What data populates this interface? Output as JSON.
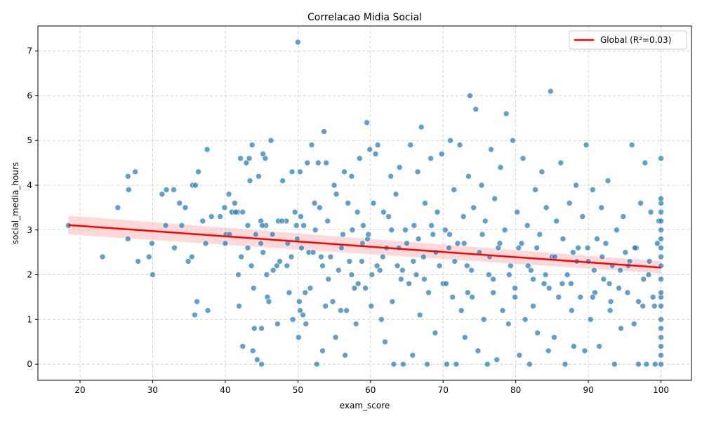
{
  "chart_data": {
    "type": "scatter",
    "title": "Correlacao Midia Social",
    "xlabel": "exam_score",
    "ylabel": "social_media_hours",
    "xlim": [
      14.2,
      104.2
    ],
    "ylim": [
      -0.36,
      7.56
    ],
    "xticks": [
      20,
      30,
      40,
      50,
      60,
      70,
      80,
      90,
      100
    ],
    "yticks": [
      0,
      1,
      2,
      3,
      4,
      5,
      6,
      7
    ],
    "grid": true,
    "legend_position": "top-right",
    "point_color": "#1f77b4",
    "regression": {
      "name": "Global (R²=0.03)",
      "color": "#ff0000",
      "band_color": "#ffb3b3",
      "x": [
        18.4,
        100
      ],
      "y": [
        3.11,
        2.16
      ],
      "ci_lower": [
        2.9,
        2.03
      ],
      "ci_upper": [
        3.32,
        2.3
      ]
    },
    "points": [
      [
        18.4,
        3.1
      ],
      [
        23.1,
        2.4
      ],
      [
        25.2,
        3.5
      ],
      [
        26.6,
        2.8
      ],
      [
        26.6,
        4.2
      ],
      [
        26.7,
        3.9
      ],
      [
        27.6,
        4.3
      ],
      [
        28.0,
        2.3
      ],
      [
        29.5,
        2.4
      ],
      [
        29.9,
        2.7
      ],
      [
        30.0,
        2.0
      ],
      [
        31.3,
        3.8
      ],
      [
        31.8,
        3.1
      ],
      [
        31.9,
        3.9
      ],
      [
        32.9,
        3.9
      ],
      [
        33.0,
        2.6
      ],
      [
        33.7,
        3.6
      ],
      [
        34.0,
        3.1
      ],
      [
        34.5,
        3.5
      ],
      [
        34.9,
        2.3
      ],
      [
        35.4,
        2.4
      ],
      [
        35.5,
        4.0
      ],
      [
        35.8,
        1.1
      ],
      [
        35.9,
        4.0
      ],
      [
        36.1,
        1.4
      ],
      [
        36.3,
        4.3
      ],
      [
        36.9,
        3.2
      ],
      [
        37.3,
        2.7
      ],
      [
        37.5,
        4.8
      ],
      [
        37.6,
        1.2
      ],
      [
        38.1,
        3.3
      ],
      [
        39.3,
        3.3
      ],
      [
        39.9,
        3.5
      ],
      [
        40.0,
        2.7
      ],
      [
        40.1,
        2.9
      ],
      [
        40.5,
        3.8
      ],
      [
        40.6,
        2.9
      ],
      [
        40.9,
        3.4
      ],
      [
        41.3,
        3.6
      ],
      [
        41.7,
        3.4
      ],
      [
        41.8,
        2.0
      ],
      [
        41.9,
        1.3
      ],
      [
        42.1,
        4.6
      ],
      [
        42.2,
        2.4
      ],
      [
        42.4,
        3.4
      ],
      [
        42.4,
        0.4
      ],
      [
        42.9,
        4.5
      ],
      [
        43.1,
        2.6
      ],
      [
        43.1,
        3.1
      ],
      [
        43.3,
        4.6
      ],
      [
        43.4,
        4.1
      ],
      [
        43.6,
        2.2
      ],
      [
        43.7,
        4.9
      ],
      [
        43.8,
        0.3
      ],
      [
        43.9,
        1.7
      ],
      [
        44.0,
        0.8
      ],
      [
        44.2,
        2.9
      ],
      [
        44.4,
        0.1
      ],
      [
        44.6,
        4.2
      ],
      [
        44.9,
        3.2
      ],
      [
        45.0,
        0.8
      ],
      [
        45.2,
        2.5
      ],
      [
        45.5,
        4.6
      ],
      [
        45.6,
        3.1
      ],
      [
        45.7,
        2.0
      ],
      [
        45.8,
        1.5
      ],
      [
        45.0,
        0.0
      ],
      [
        45.2,
        4.7
      ],
      [
        45.1,
        3.1
      ],
      [
        46.0,
        1.4
      ],
      [
        46.3,
        5.0
      ],
      [
        46.5,
        2.9
      ],
      [
        46.6,
        2.1
      ],
      [
        47.1,
        2.2
      ],
      [
        47.2,
        0.9
      ],
      [
        47.3,
        3.2
      ],
      [
        47.5,
        2.3
      ],
      [
        47.9,
        4.1
      ],
      [
        48.4,
        3.2
      ],
      [
        48.5,
        2.2
      ],
      [
        48.6,
        2.7
      ],
      [
        48.8,
        1.6
      ],
      [
        49.1,
        2.4
      ],
      [
        49.2,
        4.3
      ],
      [
        49.3,
        1.0
      ],
      [
        49.6,
        3.4
      ],
      [
        49.8,
        3.1
      ],
      [
        50.0,
        7.2
      ],
      [
        50.1,
        0.6
      ],
      [
        50.2,
        1.4
      ],
      [
        50.3,
        1.2
      ],
      [
        50.3,
        4.3
      ],
      [
        50.4,
        3.3
      ],
      [
        50.5,
        2.6
      ],
      [
        50.7,
        1.1
      ],
      [
        50.8,
        3.1
      ],
      [
        51.0,
        1.6
      ],
      [
        51.1,
        0.9
      ],
      [
        51.3,
        4.5
      ],
      [
        51.5,
        2.5
      ],
      [
        51.7,
        1.7
      ],
      [
        51.9,
        4.9
      ],
      [
        52.1,
        2.5
      ],
      [
        52.3,
        3.6
      ],
      [
        52.6,
        0.0
      ],
      [
        52.8,
        4.5
      ],
      [
        53.0,
        3.5
      ],
      [
        53.2,
        2.4
      ],
      [
        53.4,
        0.3
      ],
      [
        53.6,
        5.2
      ],
      [
        53.8,
        1.3
      ],
      [
        53.9,
        4.5
      ],
      [
        54.2,
        1.9
      ],
      [
        54.5,
        2.4
      ],
      [
        54.8,
        1.4
      ],
      [
        55.0,
        4.0
      ],
      [
        55.2,
        0.6
      ],
      [
        55.3,
        3.8
      ],
      [
        55.6,
        2.1
      ],
      [
        55.9,
        1.2
      ],
      [
        56.2,
        2.9
      ],
      [
        56.4,
        4.3
      ],
      [
        56.5,
        0.2
      ],
      [
        56.7,
        1.2
      ],
      [
        56.9,
        3.6
      ],
      [
        57.1,
        2.3
      ],
      [
        57.4,
        4.2
      ],
      [
        57.5,
        3.0
      ],
      [
        57.8,
        1.7
      ],
      [
        58.0,
        0.9
      ],
      [
        58.2,
        3.4
      ],
      [
        58.3,
        1.8
      ],
      [
        58.5,
        4.6
      ],
      [
        58.8,
        2.3
      ],
      [
        59.0,
        3.1
      ],
      [
        59.3,
        1.7
      ],
      [
        59.5,
        5.4
      ],
      [
        59.6,
        2.8
      ],
      [
        59.9,
        4.8
      ],
      [
        60.1,
        1.3
      ],
      [
        60.2,
        2.0
      ],
      [
        60.4,
        3.6
      ],
      [
        60.7,
        4.7
      ],
      [
        61.0,
        4.9
      ],
      [
        61.3,
        2.1
      ],
      [
        61.5,
        1.0
      ],
      [
        61.8,
        3.4
      ],
      [
        62.0,
        0.5
      ],
      [
        62.2,
        2.6
      ],
      [
        62.5,
        3.3
      ],
      [
        62.8,
        4.2
      ],
      [
        63.0,
        1.4
      ],
      [
        63.2,
        0.0
      ],
      [
        63.5,
        3.8
      ],
      [
        63.7,
        2.2
      ],
      [
        64.0,
        4.4
      ],
      [
        64.2,
        1.9
      ],
      [
        64.5,
        0.0
      ],
      [
        64.8,
        3.0
      ],
      [
        65.0,
        2.7
      ],
      [
        65.3,
        1.8
      ],
      [
        65.5,
        4.9
      ],
      [
        65.8,
        0.2
      ],
      [
        66.0,
        3.1
      ],
      [
        66.3,
        2.0
      ],
      [
        66.5,
        4.3
      ],
      [
        66.8,
        1.1
      ],
      [
        67.0,
        5.3
      ],
      [
        67.3,
        2.4
      ],
      [
        67.5,
        3.6
      ],
      [
        67.8,
        0.0
      ],
      [
        68.0,
        1.6
      ],
      [
        68.3,
        4.6
      ],
      [
        68.6,
        2.9
      ],
      [
        68.9,
        0.7
      ],
      [
        69.2,
        3.4
      ],
      [
        69.5,
        2.2
      ],
      [
        69.8,
        4.7
      ],
      [
        70.0,
        1.8
      ],
      [
        70.3,
        3.0
      ],
      [
        70.5,
        0.0
      ],
      [
        70.8,
        2.6
      ],
      [
        71.0,
        5.0
      ],
      [
        71.3,
        1.5
      ],
      [
        71.5,
        3.9
      ],
      [
        71.8,
        0.0
      ],
      [
        72.0,
        2.7
      ],
      [
        72.3,
        4.9
      ],
      [
        72.5,
        1.2
      ],
      [
        72.8,
        3.3
      ],
      [
        73.0,
        0.6
      ],
      [
        73.3,
        2.2
      ],
      [
        73.5,
        4.2
      ],
      [
        73.7,
        6.0
      ],
      [
        74.0,
        1.5
      ],
      [
        74.2,
        3.5
      ],
      [
        74.5,
        5.7
      ],
      [
        74.8,
        0.3
      ],
      [
        75.0,
        2.5
      ],
      [
        75.3,
        4.0
      ],
      [
        75.6,
        1.0
      ],
      [
        75.8,
        3.2
      ],
      [
        76.1,
        0.0
      ],
      [
        76.3,
        2.0
      ],
      [
        76.6,
        4.8
      ],
      [
        76.9,
        1.6
      ],
      [
        77.1,
        3.7
      ],
      [
        77.4,
        0.1
      ],
      [
        77.6,
        2.6
      ],
      [
        77.9,
        4.4
      ],
      [
        78.2,
        1.2
      ],
      [
        78.5,
        3.0
      ],
      [
        78.7,
        5.6
      ],
      [
        79.0,
        0.9
      ],
      [
        79.3,
        2.2
      ],
      [
        79.6,
        5.0
      ],
      [
        79.9,
        1.5
      ],
      [
        80.2,
        3.4
      ],
      [
        80.5,
        0.2
      ],
      [
        80.8,
        2.7
      ],
      [
        81.0,
        4.6
      ],
      [
        81.3,
        1.0
      ],
      [
        81.6,
        3.1
      ],
      [
        81.9,
        0.0
      ],
      [
        82.1,
        2.1
      ],
      [
        82.4,
        1.3
      ],
      [
        82.7,
        3.9
      ],
      [
        83.0,
        0.7
      ],
      [
        83.3,
        2.9
      ],
      [
        83.6,
        4.3
      ],
      [
        83.9,
        1.8
      ],
      [
        84.2,
        3.5
      ],
      [
        84.5,
        0.3
      ],
      [
        84.8,
        6.1
      ],
      [
        85.0,
        2.4
      ],
      [
        85.3,
        0.6
      ],
      [
        85.6,
        3.2
      ],
      [
        85.9,
        1.5
      ],
      [
        86.2,
        4.5
      ],
      [
        86.5,
        2.8
      ],
      [
        86.8,
        0.0
      ],
      [
        87.1,
        2.0
      ],
      [
        87.4,
        3.6
      ],
      [
        87.7,
        1.2
      ],
      [
        88.0,
        0.4
      ],
      [
        88.3,
        4.0
      ],
      [
        88.6,
        2.6
      ],
      [
        88.9,
        1.5
      ],
      [
        89.2,
        3.3
      ],
      [
        89.5,
        0.3
      ],
      [
        89.7,
        4.9
      ],
      [
        90.0,
        2.3
      ],
      [
        90.3,
        1.0
      ],
      [
        90.6,
        3.9
      ],
      [
        90.9,
        1.6
      ],
      [
        91.2,
        2.8
      ],
      [
        91.5,
        0.4
      ],
      [
        91.8,
        3.5
      ],
      [
        92.1,
        1.9
      ],
      [
        92.4,
        2.7
      ],
      [
        92.7,
        4.1
      ],
      [
        93.0,
        1.2
      ],
      [
        93.3,
        2.2
      ],
      [
        93.6,
        0.0
      ],
      [
        93.9,
        3.0
      ],
      [
        94.2,
        1.7
      ],
      [
        94.5,
        0.8
      ],
      [
        94.8,
        3.3
      ],
      [
        95.1,
        2.5
      ],
      [
        95.4,
        1.6
      ],
      [
        95.7,
        2.3
      ],
      [
        96.0,
        4.9
      ],
      [
        96.3,
        0.9
      ],
      [
        96.6,
        2.6
      ],
      [
        96.9,
        0.0
      ],
      [
        97.2,
        3.6
      ],
      [
        97.5,
        1.3
      ],
      [
        97.8,
        4.5
      ],
      [
        98.0,
        0.0
      ],
      [
        98.3,
        2.0
      ],
      [
        98.6,
        3.4
      ],
      [
        98.9,
        1.5
      ],
      [
        99.2,
        0.0
      ],
      [
        99.5,
        2.7
      ],
      [
        99.7,
        3.2
      ],
      [
        100,
        0.0
      ],
      [
        100,
        0.2
      ],
      [
        100,
        0.4
      ],
      [
        100,
        0.6
      ],
      [
        100,
        0.8
      ],
      [
        100,
        1.0
      ],
      [
        100,
        1.3
      ],
      [
        100,
        1.5
      ],
      [
        100,
        1.6
      ],
      [
        100,
        1.9
      ],
      [
        100,
        2.2
      ],
      [
        100,
        2.4
      ],
      [
        100,
        2.6
      ],
      [
        100,
        2.8
      ],
      [
        100,
        3.0
      ],
      [
        100,
        3.2
      ],
      [
        100,
        3.4
      ],
      [
        100,
        3.6
      ],
      [
        100,
        3.7
      ],
      [
        100,
        4.6
      ],
      [
        41.4,
        3.4
      ],
      [
        47.8,
        3.2
      ],
      [
        52.4,
        3.0
      ],
      [
        56.0,
        2.6
      ],
      [
        59.7,
        2.9
      ],
      [
        61.7,
        2.4
      ],
      [
        63.9,
        2.6
      ],
      [
        66.6,
        2.8
      ],
      [
        69.0,
        2.5
      ],
      [
        71.6,
        2.3
      ],
      [
        73.9,
        2.1
      ],
      [
        76.4,
        2.4
      ],
      [
        79.1,
        2.0
      ],
      [
        81.7,
        2.2
      ],
      [
        84.1,
        2.0
      ],
      [
        86.4,
        1.8
      ],
      [
        88.4,
        2.3
      ],
      [
        90.8,
        2.1
      ],
      [
        92.9,
        1.8
      ],
      [
        95.5,
        2.2
      ],
      [
        97.6,
        1.9
      ],
      [
        54.1,
        3.2
      ],
      [
        58.9,
        2.7
      ],
      [
        62.9,
        3.0
      ],
      [
        65.9,
        2.3
      ],
      [
        68.4,
        3.1
      ],
      [
        70.9,
        2.9
      ],
      [
        72.9,
        2.7
      ],
      [
        75.4,
        2.9
      ],
      [
        77.8,
        2.7
      ],
      [
        80.4,
        2.6
      ],
      [
        82.9,
        2.6
      ],
      [
        85.4,
        2.4
      ],
      [
        87.9,
        2.5
      ],
      [
        89.9,
        2.6
      ],
      [
        91.9,
        2.4
      ],
      [
        94.4,
        2.1
      ],
      [
        96.4,
        2.6
      ],
      [
        98.4,
        2.3
      ],
      [
        44.9,
        2.7
      ],
      [
        49.9,
        2.8
      ],
      [
        53.4,
        2.2
      ],
      [
        57.4,
        2.0
      ],
      [
        60.9,
        2.2
      ],
      [
        64.4,
        2.1
      ],
      [
        67.4,
        1.9
      ],
      [
        70.4,
        1.8
      ],
      [
        73.4,
        1.6
      ],
      [
        76.9,
        1.9
      ],
      [
        79.9,
        1.7
      ],
      [
        82.4,
        1.9
      ],
      [
        84.6,
        1.7
      ],
      [
        87.6,
        1.8
      ],
      [
        90.6,
        1.5
      ],
      [
        93.1,
        1.4
      ],
      [
        96.9,
        1.4
      ],
      [
        99.1,
        1.3
      ]
    ]
  }
}
